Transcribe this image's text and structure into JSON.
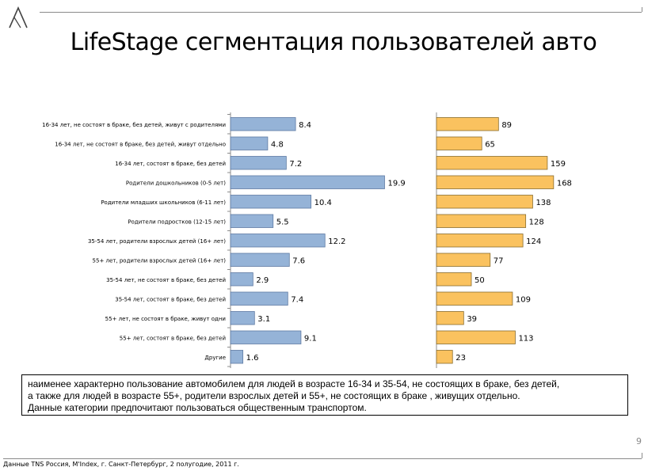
{
  "title": "LifeStage сегментация пользователей авто",
  "logo_icon": "triangle-a-logo-icon",
  "chart_data": [
    {
      "type": "bar",
      "orientation": "horizontal",
      "categories": [
        "16-34 лет, не состоят в браке, без детей, живут с родителями",
        "16-34 лет, не состоят в браке, без детей, живут отдельно",
        "16-34 лет, состоят в браке, без детей",
        "Родители дошкольников (0-5 лет)",
        "Родители младших школьников (6-11 лет)",
        "Родители подростков (12-15 лет)",
        "35-54 лет, родители взрослых детей (16+ лет)",
        "55+ лет, родители взрослых детей (16+ лет)",
        "35-54 лет, не состоят в браке, без детей",
        "35-54 лет, состоят в браке, без детей",
        "55+ лет, не состоят в браке, живут одни",
        "55+ лет, состоят в браке, без детей",
        "Другие"
      ],
      "values": [
        8.4,
        4.8,
        7.2,
        19.9,
        10.4,
        5.5,
        12.2,
        7.6,
        2.9,
        7.4,
        3.1,
        9.1,
        1.6
      ],
      "value_labels": [
        "8.4",
        "4.8",
        "7.2",
        "19.9",
        "10.4",
        "5.5",
        "12.2",
        "7.6",
        "2.9",
        "7.4",
        "3.1",
        "9.1",
        "1.6"
      ],
      "color": "#95b3d7",
      "xlim": [
        0,
        22
      ]
    },
    {
      "type": "bar",
      "orientation": "horizontal",
      "values": [
        89,
        65,
        159,
        168,
        138,
        128,
        124,
        77,
        50,
        109,
        39,
        113,
        23
      ],
      "value_labels": [
        "89",
        "65",
        "159",
        "168",
        "138",
        "128",
        "124",
        "77",
        "50",
        "109",
        "39",
        "113",
        "23"
      ],
      "color": "#fac25f",
      "xlim": [
        0,
        200
      ]
    }
  ],
  "note": {
    "lines": [
      "наименее характерно пользование автомобилем для людей в возрасте 16-34 и 35-54, не состоящих в браке, без детей,",
      "а также  для людей  в возрасте 55+, родители взрослых детей и 55+, не состоящих в браке , живущих  отдельно.",
      "Данные категории предпочитают пользоваться общественным транспортом."
    ]
  },
  "page_number": "9",
  "source": "Данные TNS Россия, M'Index, г. Санкт-Петербург,  2 полугодие, 2011 г."
}
